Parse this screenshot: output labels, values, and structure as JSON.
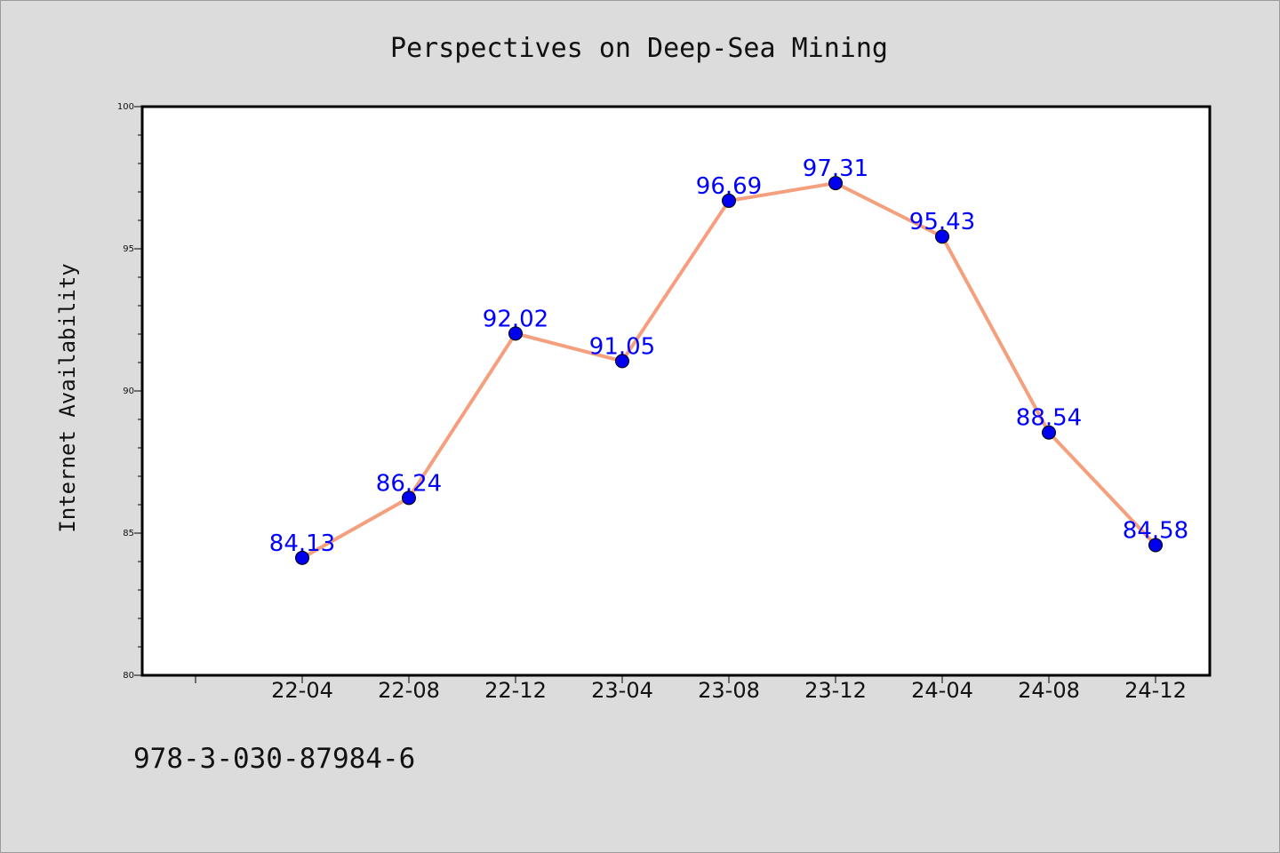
{
  "chart_data": {
    "type": "line",
    "title": "Perspectives on Deep-Sea Mining",
    "xlabel": "",
    "ylabel": "Internet Availability",
    "categories": [
      "22-04",
      "22-08",
      "22-12",
      "23-04",
      "23-08",
      "23-12",
      "24-04",
      "24-08",
      "24-12"
    ],
    "series": [
      {
        "values": [
          84.13,
          86.24,
          92.02,
          91.05,
          96.69,
          97.31,
          95.43,
          88.54,
          84.58
        ],
        "data_labels": [
          "84.13",
          "86.24",
          "92.02",
          "91.05",
          "96.69",
          "97.31",
          "95.43",
          "88.54",
          "84.58"
        ],
        "line_color": "#f4a07e",
        "marker_color": "#0000ee",
        "label_color": "#0000ff"
      }
    ],
    "ylim": [
      80,
      100
    ],
    "yticks": [
      "80",
      "85",
      "90",
      "95",
      "100"
    ],
    "grid": false,
    "legend": "none"
  },
  "footer": {
    "isbn": "978-3-030-87984-6"
  },
  "colors": {
    "background": "#dcdcdc",
    "plot_background": "#ffffff",
    "axis": "#000000"
  }
}
